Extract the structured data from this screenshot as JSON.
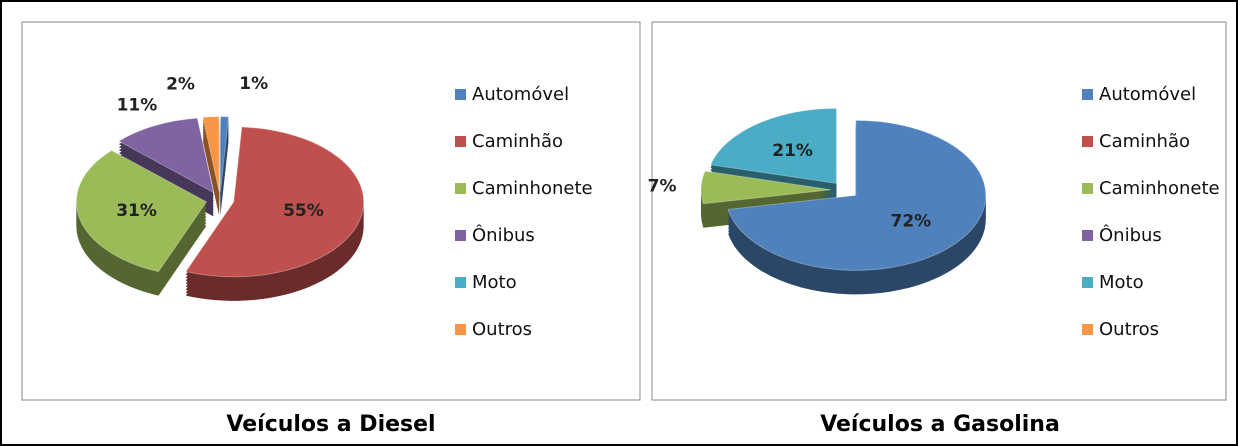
{
  "chart_data": [
    {
      "type": "pie",
      "title": "Veículos a Diesel",
      "categories": [
        "Automóvel",
        "Caminhão",
        "Caminhonete",
        "Ônibus",
        "Moto",
        "Outros"
      ],
      "values": [
        1,
        55,
        31,
        11,
        0,
        2
      ],
      "value_labels": [
        "1%",
        "55%",
        "31%",
        "11%",
        null,
        "2%"
      ],
      "colors": [
        "#4f81bd",
        "#c0504d",
        "#9bbb59",
        "#8064a2",
        "#4bacc6",
        "#f79646"
      ]
    },
    {
      "type": "pie",
      "title": "Veículos a Gasolina",
      "categories": [
        "Automóvel",
        "Caminhão",
        "Caminhonete",
        "Ônibus",
        "Moto",
        "Outros"
      ],
      "values": [
        72,
        0,
        7,
        0,
        21,
        0
      ],
      "value_labels": [
        "72%",
        null,
        "7%",
        null,
        "21%",
        null
      ],
      "colors": [
        "#4f81bd",
        "#c0504d",
        "#9bbb59",
        "#8064a2",
        "#4bacc6",
        "#f79646"
      ]
    }
  ]
}
